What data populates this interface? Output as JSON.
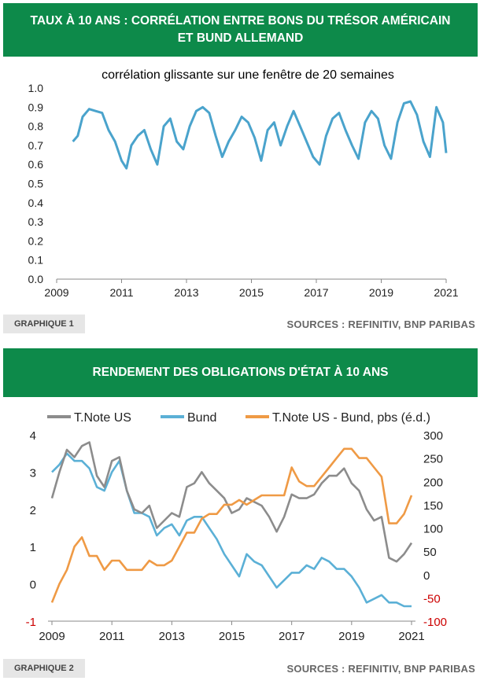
{
  "chart1": {
    "title_line1": "TAUX À 10 ANS : CORRÉLATION ENTRE BONS DU TRÉSOR AMÉRICAIN",
    "title_line2": "ET BUND ALLEMAND",
    "tag": "GRAPHIQUE 1",
    "sources": "SOURCES : REFINITIV, BNP PARIBAS",
    "chart_data": {
      "type": "line",
      "title": "corrélation glissante sur une fenêtre de 20 semaines",
      "xlabel": "",
      "ylabel": "",
      "xlim": [
        2009,
        2021
      ],
      "ylim": [
        0,
        1
      ],
      "xticks": [
        "2009",
        "2011",
        "2013",
        "2015",
        "2017",
        "2019",
        "2021"
      ],
      "yticks": [
        "0.0",
        "0.1",
        "0.2",
        "0.3",
        "0.4",
        "0.5",
        "0.6",
        "0.7",
        "0.8",
        "0.9",
        "1.0"
      ],
      "color": "#4aa3cc",
      "series": [
        {
          "x": [
            2009.5,
            2009.65,
            2009.8,
            2010.0,
            2010.2,
            2010.4,
            2010.6,
            2010.8,
            2011.0,
            2011.15,
            2011.3,
            2011.5,
            2011.7,
            2011.9,
            2012.1,
            2012.3,
            2012.5,
            2012.7,
            2012.9,
            2013.1,
            2013.3,
            2013.5,
            2013.7,
            2013.9,
            2014.1,
            2014.3,
            2014.5,
            2014.7,
            2014.9,
            2015.1,
            2015.3,
            2015.5,
            2015.7,
            2015.9,
            2016.1,
            2016.3,
            2016.5,
            2016.7,
            2016.9,
            2017.1,
            2017.3,
            2017.5,
            2017.7,
            2017.9,
            2018.1,
            2018.3,
            2018.5,
            2018.7,
            2018.9,
            2019.1,
            2019.3,
            2019.5,
            2019.7,
            2019.9,
            2020.1,
            2020.3,
            2020.5,
            2020.7,
            2020.9,
            2021.0
          ],
          "values": [
            0.72,
            0.75,
            0.85,
            0.89,
            0.88,
            0.87,
            0.78,
            0.72,
            0.62,
            0.58,
            0.7,
            0.75,
            0.78,
            0.68,
            0.6,
            0.8,
            0.84,
            0.72,
            0.68,
            0.8,
            0.88,
            0.9,
            0.87,
            0.75,
            0.64,
            0.72,
            0.78,
            0.85,
            0.82,
            0.74,
            0.62,
            0.78,
            0.82,
            0.7,
            0.8,
            0.88,
            0.8,
            0.72,
            0.64,
            0.6,
            0.75,
            0.84,
            0.87,
            0.78,
            0.7,
            0.63,
            0.82,
            0.88,
            0.84,
            0.7,
            0.63,
            0.82,
            0.92,
            0.93,
            0.86,
            0.72,
            0.64,
            0.9,
            0.82,
            0.66
          ]
        }
      ]
    }
  },
  "chart2": {
    "title": "RENDEMENT DES OBLIGATIONS D'ÉTAT À 10 ANS",
    "tag": "GRAPHIQUE 2",
    "sources": "SOURCES : REFINITIV, BNP PARIBAS",
    "chart_data": {
      "type": "line",
      "xlabel": "",
      "ylabel": "",
      "xlim": [
        2009,
        2021
      ],
      "ylim": [
        -1,
        4
      ],
      "y2lim": [
        -100,
        300
      ],
      "xticks": [
        "2009",
        "2011",
        "2013",
        "2015",
        "2017",
        "2019",
        "2021"
      ],
      "yticks": [
        "-1",
        "0",
        "1",
        "2",
        "3",
        "4"
      ],
      "y2ticks": [
        "-100",
        "-50",
        "0",
        "50",
        "100",
        "150",
        "200",
        "250",
        "300"
      ],
      "y2tick_color": "#cc0000",
      "series": [
        {
          "name": "T.Note US",
          "color": "#8c8c8c",
          "axis": "left",
          "x": [
            2009.0,
            2009.25,
            2009.5,
            2009.75,
            2010.0,
            2010.25,
            2010.5,
            2010.75,
            2011.0,
            2011.25,
            2011.5,
            2011.75,
            2012.0,
            2012.25,
            2012.5,
            2012.75,
            2013.0,
            2013.25,
            2013.5,
            2013.75,
            2014.0,
            2014.25,
            2014.5,
            2014.75,
            2015.0,
            2015.25,
            2015.5,
            2015.75,
            2016.0,
            2016.25,
            2016.5,
            2016.75,
            2017.0,
            2017.25,
            2017.5,
            2017.75,
            2018.0,
            2018.25,
            2018.5,
            2018.75,
            2019.0,
            2019.25,
            2019.5,
            2019.75,
            2020.0,
            2020.25,
            2020.5,
            2020.75,
            2021.0
          ],
          "values": [
            2.3,
            3.0,
            3.6,
            3.4,
            3.7,
            3.8,
            2.9,
            2.6,
            3.3,
            3.4,
            2.5,
            2.0,
            1.9,
            2.1,
            1.5,
            1.7,
            1.9,
            1.8,
            2.6,
            2.7,
            3.0,
            2.7,
            2.5,
            2.3,
            1.9,
            2.0,
            2.3,
            2.2,
            2.1,
            1.8,
            1.4,
            1.8,
            2.4,
            2.3,
            2.3,
            2.4,
            2.7,
            2.9,
            2.9,
            3.1,
            2.7,
            2.5,
            2.0,
            1.7,
            1.8,
            0.7,
            0.6,
            0.8,
            1.1
          ]
        },
        {
          "name": "Bund",
          "color": "#5bb0d6",
          "axis": "left",
          "x": [
            2009.0,
            2009.25,
            2009.5,
            2009.75,
            2010.0,
            2010.25,
            2010.5,
            2010.75,
            2011.0,
            2011.25,
            2011.5,
            2011.75,
            2012.0,
            2012.25,
            2012.5,
            2012.75,
            2013.0,
            2013.25,
            2013.5,
            2013.75,
            2014.0,
            2014.25,
            2014.5,
            2014.75,
            2015.0,
            2015.25,
            2015.5,
            2015.75,
            2016.0,
            2016.25,
            2016.5,
            2016.75,
            2017.0,
            2017.25,
            2017.5,
            2017.75,
            2018.0,
            2018.25,
            2018.5,
            2018.75,
            2019.0,
            2019.25,
            2019.5,
            2019.75,
            2020.0,
            2020.25,
            2020.5,
            2020.75,
            2021.0
          ],
          "values": [
            3.0,
            3.2,
            3.5,
            3.3,
            3.3,
            3.1,
            2.6,
            2.5,
            3.0,
            3.3,
            2.5,
            1.9,
            1.9,
            1.8,
            1.3,
            1.5,
            1.6,
            1.3,
            1.7,
            1.8,
            1.8,
            1.5,
            1.2,
            0.8,
            0.5,
            0.2,
            0.8,
            0.6,
            0.5,
            0.2,
            -0.1,
            0.1,
            0.3,
            0.3,
            0.5,
            0.4,
            0.7,
            0.6,
            0.4,
            0.4,
            0.2,
            -0.1,
            -0.5,
            -0.4,
            -0.3,
            -0.5,
            -0.5,
            -0.6,
            -0.6
          ]
        },
        {
          "name": "T.Note US - Bund, pbs (é.d.)",
          "color": "#ef9a45",
          "axis": "right",
          "x": [
            2009.0,
            2009.25,
            2009.5,
            2009.75,
            2010.0,
            2010.25,
            2010.5,
            2010.75,
            2011.0,
            2011.25,
            2011.5,
            2011.75,
            2012.0,
            2012.25,
            2012.5,
            2012.75,
            2013.0,
            2013.25,
            2013.5,
            2013.75,
            2014.0,
            2014.25,
            2014.5,
            2014.75,
            2015.0,
            2015.25,
            2015.5,
            2015.75,
            2016.0,
            2016.25,
            2016.5,
            2016.75,
            2017.0,
            2017.25,
            2017.5,
            2017.75,
            2018.0,
            2018.25,
            2018.5,
            2018.75,
            2019.0,
            2019.25,
            2019.5,
            2019.75,
            2020.0,
            2020.25,
            2020.5,
            2020.75,
            2021.0
          ],
          "values": [
            -60,
            -20,
            10,
            60,
            80,
            40,
            40,
            10,
            30,
            30,
            10,
            10,
            10,
            30,
            20,
            20,
            30,
            60,
            90,
            90,
            120,
            130,
            130,
            150,
            150,
            160,
            150,
            160,
            170,
            170,
            170,
            170,
            230,
            200,
            190,
            190,
            210,
            230,
            250,
            270,
            270,
            250,
            250,
            230,
            210,
            110,
            110,
            130,
            170
          ]
        }
      ]
    }
  }
}
